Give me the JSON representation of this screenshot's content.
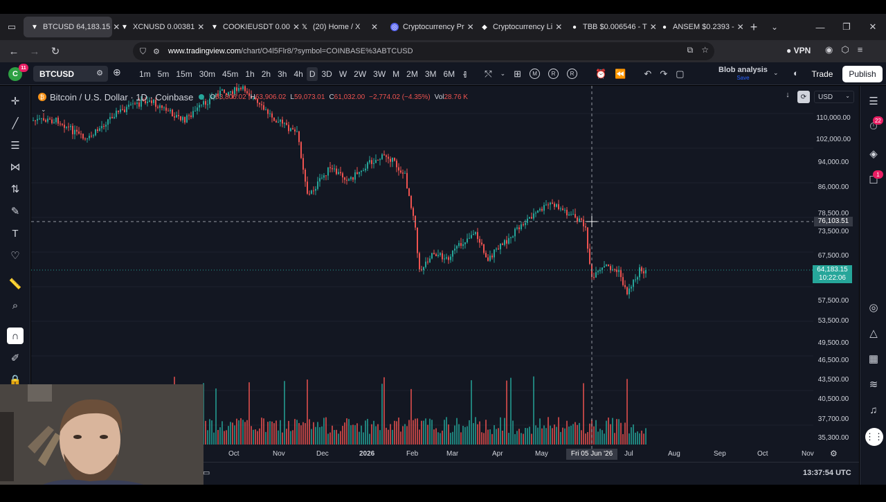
{
  "browser": {
    "tabs": [
      {
        "icon": "tradingview-icon",
        "title": "BTCUSD 64,183.15",
        "active": true
      },
      {
        "icon": "tradingview-icon",
        "title": "XCNUSD 0.00381"
      },
      {
        "icon": "tradingview-icon",
        "title": "COOKIEUSDT 0.00"
      },
      {
        "icon": "x-icon",
        "title": "(20) Home / X"
      },
      {
        "icon": "coinmarket-icon",
        "title": "Cryptocurrency Pr"
      },
      {
        "icon": "cryptocurrency-icon",
        "title": "Cryptocurrency Li"
      },
      {
        "icon": "tbb-icon",
        "title": "TBB $0.006546 - T"
      },
      {
        "icon": "ansem-icon",
        "title": "ANSEM $0.2393 -"
      }
    ],
    "url_domain": "www.tradingview.com",
    "url_path": "/chart/O4l5Flr8/?symbol=COINBASE%3ABTCUSD",
    "vpn_label": "VPN"
  },
  "toolbar": {
    "avatar_letter": "C",
    "avatar_badge": "11",
    "symbol": "BTCUSD",
    "intervals": [
      "1m",
      "5m",
      "15m",
      "30m",
      "45m",
      "1h",
      "2h",
      "3h",
      "4h",
      "D",
      "3D",
      "W",
      "2W",
      "3W",
      "M",
      "2M",
      "3M",
      "6M"
    ],
    "selected_interval": "D",
    "alert_buttons": [
      "M",
      "R",
      "R"
    ],
    "layout_name": "Blob analysis",
    "layout_save": "Save",
    "trade_label": "Trade",
    "publish_label": "Publish"
  },
  "legend": {
    "title": "Bitcoin / U.S. Dollar · 1D · Coinbase",
    "open_label": "O",
    "open": "63,806.02",
    "high_label": "H",
    "high": "63,906.02",
    "low_label": "L",
    "low": "59,073.01",
    "close_label": "C",
    "close": "61,032.00",
    "change": "−2,774.02 (−4.35%)",
    "vol_label": "Vol",
    "vol": "28.76 K"
  },
  "currency": "USD",
  "price_axis": [
    "110,000.00",
    "102,000.00",
    "94,000.00",
    "86,000.00",
    "78,500.00",
    "73,500.00",
    "67,500.00",
    "57,500.00",
    "53,500.00",
    "49,500.00",
    "46,500.00",
    "43,500.00",
    "40,500.00",
    "37,700.00",
    "35,300.00"
  ],
  "crosshair_price": "76,103.51",
  "last_price": "64,183.15",
  "countdown": "10:22:06",
  "time_axis": [
    "Oct",
    "Nov",
    "Dec",
    "2026",
    "Feb",
    "Mar",
    "Apr",
    "May",
    "Jul",
    "Aug",
    "Sep",
    "Oct",
    "Nov"
  ],
  "crosshair_date": "Fri 05 Jun '26",
  "clock": "13:37:54 UTC",
  "right_badges": {
    "ideas": "22",
    "chats": "1"
  },
  "colors": {
    "up": "#26a69a",
    "down": "#ef5350",
    "bg": "#131722",
    "accent": "#2962ff"
  }
}
